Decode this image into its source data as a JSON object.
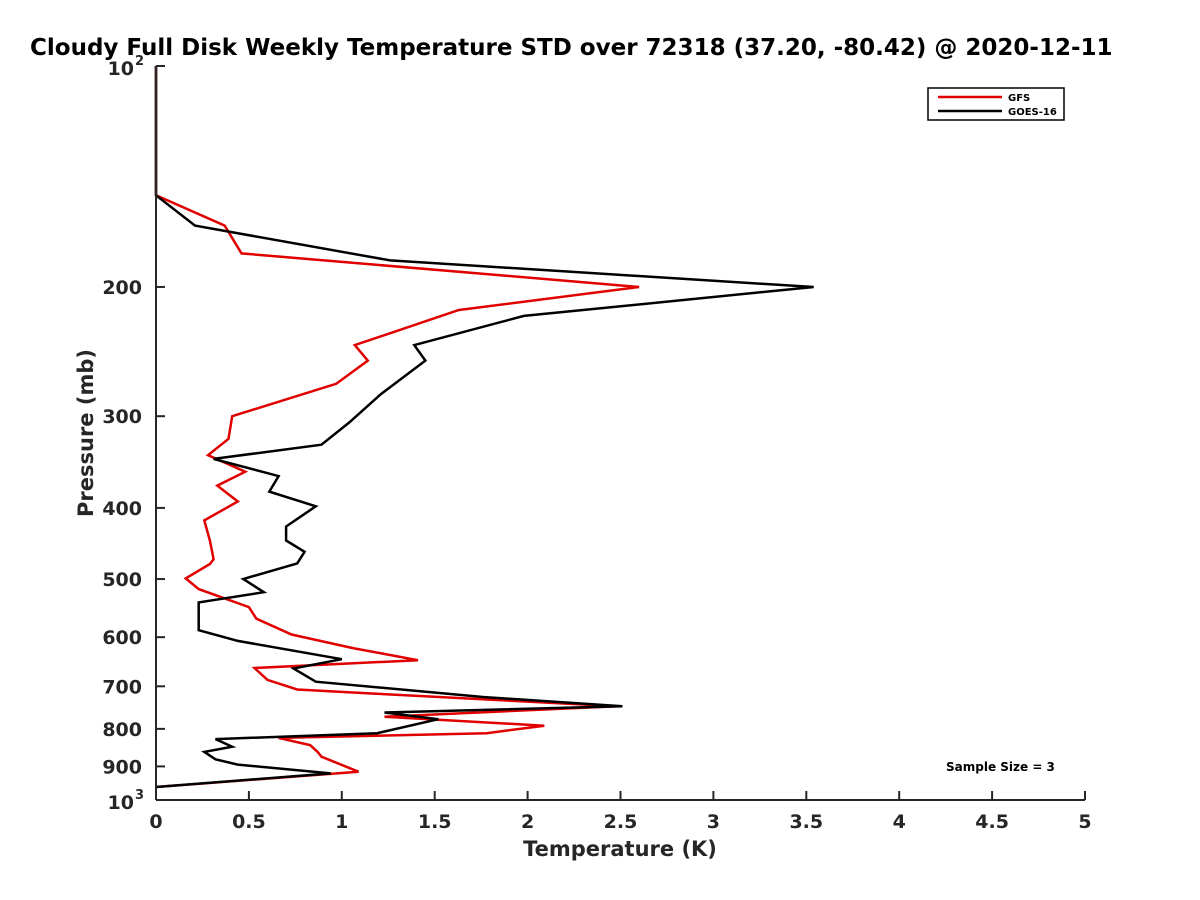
{
  "chart_data": {
    "type": "line",
    "title": "Cloudy Full Disk Weekly Temperature STD over 72318 (37.20, -80.42) @ 2020-12-11",
    "xlabel": "Temperature (K)",
    "ylabel": "Pressure (mb)",
    "xlim": [
      0,
      5
    ],
    "ylim": [
      100,
      1000
    ],
    "y_scale": "log",
    "y_reversed": true,
    "x_ticks": [
      0,
      0.5,
      1,
      1.5,
      2,
      2.5,
      3,
      3.5,
      4,
      4.5,
      5
    ],
    "x_tick_labels": [
      "0",
      "0.5",
      "1",
      "1.5",
      "2",
      "2.5",
      "3",
      "3.5",
      "4",
      "4.5",
      "5"
    ],
    "y_ticks": [
      200,
      300,
      400,
      500,
      600,
      700,
      800,
      900
    ],
    "y_tick_labels": [
      "200",
      "300",
      "400",
      "500",
      "600",
      "700",
      "800",
      "900"
    ],
    "y_decade_ticks": [
      {
        "value": 100,
        "base": "10",
        "exp": "2"
      },
      {
        "value": 1000,
        "base": "10",
        "exp": "3"
      }
    ],
    "legend": {
      "position": "top-right"
    },
    "annotation": "Sample Size = 3",
    "series": [
      {
        "name": "GFS",
        "color": "#e00000",
        "points": [
          [
            0,
            100
          ],
          [
            0,
            150
          ],
          [
            0.37,
            165
          ],
          [
            0.46,
            180
          ],
          [
            2.6,
            200
          ],
          [
            1.63,
            215
          ],
          [
            1.07,
            240
          ],
          [
            1.14,
            252
          ],
          [
            0.97,
            271
          ],
          [
            0.41,
            300
          ],
          [
            0.39,
            322
          ],
          [
            0.28,
            339
          ],
          [
            0.48,
            357
          ],
          [
            0.33,
            373
          ],
          [
            0.44,
            392
          ],
          [
            0.26,
            416
          ],
          [
            0.29,
            443
          ],
          [
            0.31,
            470
          ],
          [
            0.29,
            477
          ],
          [
            0.16,
            499
          ],
          [
            0.23,
            516
          ],
          [
            0.5,
            546
          ],
          [
            0.54,
            566
          ],
          [
            0.73,
            595
          ],
          [
            1.06,
            621
          ],
          [
            1.41,
            645
          ],
          [
            0.53,
            661
          ],
          [
            0.6,
            686
          ],
          [
            0.76,
            707
          ],
          [
            1.16,
            716
          ],
          [
            2.48,
            745
          ],
          [
            1.23,
            770
          ],
          [
            2.09,
            792
          ],
          [
            1.78,
            811
          ],
          [
            0.66,
            823
          ],
          [
            0.83,
            842
          ],
          [
            0.87,
            860
          ],
          [
            0.89,
            873
          ],
          [
            1.09,
            915
          ],
          [
            0,
            960
          ]
        ]
      },
      {
        "name": "GOES-16",
        "color": "#000000",
        "points": [
          [
            0,
            100
          ],
          [
            0,
            150
          ],
          [
            0.21,
            165
          ],
          [
            1.26,
            184
          ],
          [
            3.54,
            200
          ],
          [
            1.98,
            219
          ],
          [
            1.39,
            240
          ],
          [
            1.45,
            252
          ],
          [
            1.21,
            280
          ],
          [
            1.04,
            306
          ],
          [
            0.89,
            328
          ],
          [
            0.31,
            343
          ],
          [
            0.66,
            362
          ],
          [
            0.61,
            380
          ],
          [
            0.86,
            398
          ],
          [
            0.7,
            424
          ],
          [
            0.7,
            443
          ],
          [
            0.8,
            459
          ],
          [
            0.76,
            476
          ],
          [
            0.47,
            500
          ],
          [
            0.58,
            521
          ],
          [
            0.23,
            538
          ],
          [
            0.23,
            587
          ],
          [
            0.44,
            607
          ],
          [
            1.0,
            643
          ],
          [
            0.74,
            662
          ],
          [
            0.86,
            690
          ],
          [
            1.76,
            724
          ],
          [
            2.51,
            745
          ],
          [
            1.23,
            760
          ],
          [
            1.52,
            776
          ],
          [
            1.19,
            811
          ],
          [
            0.32,
            826
          ],
          [
            0.41,
            846
          ],
          [
            0.26,
            860
          ],
          [
            0.32,
            880
          ],
          [
            0.44,
            895
          ],
          [
            0.94,
            920
          ],
          [
            0,
            960
          ]
        ]
      }
    ]
  }
}
